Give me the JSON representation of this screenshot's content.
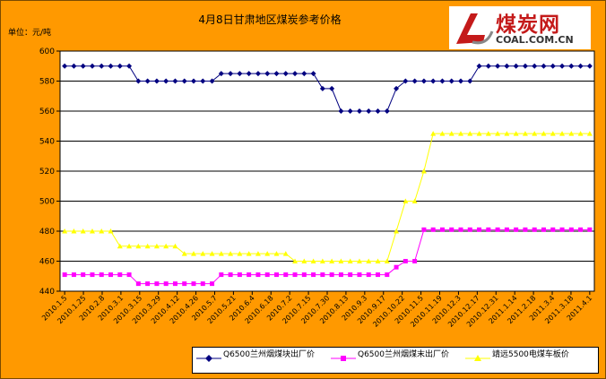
{
  "title": "4月8日甘肃地区煤炭参考价格",
  "unit_label": "单位：元/吨",
  "logo": {
    "text_cn": "煤炭网",
    "text_en": "COAL.COM.CN"
  },
  "colors": {
    "background": "#ff9900",
    "plot_background": "#ffffff",
    "grid": "#000000",
    "series1": "#000080",
    "series2": "#ff00ff",
    "series3": "#ffff00"
  },
  "chart_data": {
    "type": "line",
    "title": "4月8日甘肃地区煤炭参考价格",
    "ylabel": "单位：元/吨",
    "xlabel": "",
    "ylim": [
      440,
      600
    ],
    "yticks": [
      440,
      460,
      480,
      500,
      520,
      540,
      560,
      580,
      600
    ],
    "grid": true,
    "legend_position": "bottom",
    "x_tick_labels": [
      "2010.1.5",
      "2010.1.25",
      "2010.2.8",
      "2010.3.1",
      "2010.3.15",
      "2010.3.29",
      "2010.4.12",
      "2010.4.26",
      "2010.5.7",
      "2010.5.21",
      "2010.6.4",
      "2010.6.18",
      "2010.7.2",
      "2010.7.15",
      "2010.7.30",
      "2010.8.13",
      "2010.9.3",
      "2010.9.17",
      "2010.10.22",
      "2010.11.5",
      "2010.11.19",
      "2010.12.3",
      "2010.12.17",
      "2010.12.31",
      "2011.1.14",
      "2011.2.18",
      "2011.3.4",
      "2011.3.18",
      "2011.4.1"
    ],
    "series": [
      {
        "name": "Q6500兰州烟煤块出厂价",
        "marker": "diamond",
        "values": [
          590,
          590,
          590,
          590,
          590,
          590,
          590,
          590,
          580,
          580,
          580,
          580,
          580,
          580,
          580,
          580,
          580,
          585,
          585,
          585,
          585,
          585,
          585,
          585,
          585,
          585,
          585,
          585,
          575,
          575,
          560,
          560,
          560,
          560,
          560,
          560,
          575,
          580,
          580,
          580,
          580,
          580,
          580,
          580,
          580,
          590,
          590,
          590,
          590,
          590,
          590,
          590,
          590,
          590,
          590,
          590,
          590,
          590
        ]
      },
      {
        "name": "Q6500兰州烟煤末出厂价",
        "marker": "square",
        "values": [
          451,
          451,
          451,
          451,
          451,
          451,
          451,
          451,
          445,
          445,
          445,
          445,
          445,
          445,
          445,
          445,
          445,
          451,
          451,
          451,
          451,
          451,
          451,
          451,
          451,
          451,
          451,
          451,
          451,
          451,
          451,
          451,
          451,
          451,
          451,
          451,
          456,
          460,
          460,
          481,
          481,
          481,
          481,
          481,
          481,
          481,
          481,
          481,
          481,
          481,
          481,
          481,
          481,
          481,
          481,
          481,
          481,
          481
        ]
      },
      {
        "name": "靖远5500电煤车板价",
        "marker": "triangle",
        "values": [
          480,
          480,
          480,
          480,
          480,
          480,
          470,
          470,
          470,
          470,
          470,
          470,
          470,
          465,
          465,
          465,
          465,
          465,
          465,
          465,
          465,
          465,
          465,
          465,
          465,
          460,
          460,
          460,
          460,
          460,
          460,
          460,
          460,
          460,
          460,
          460,
          480,
          500,
          500,
          520,
          545,
          545,
          545,
          545,
          545,
          545,
          545,
          545,
          545,
          545,
          545,
          545,
          545,
          545,
          545,
          545,
          545,
          545
        ]
      }
    ]
  }
}
